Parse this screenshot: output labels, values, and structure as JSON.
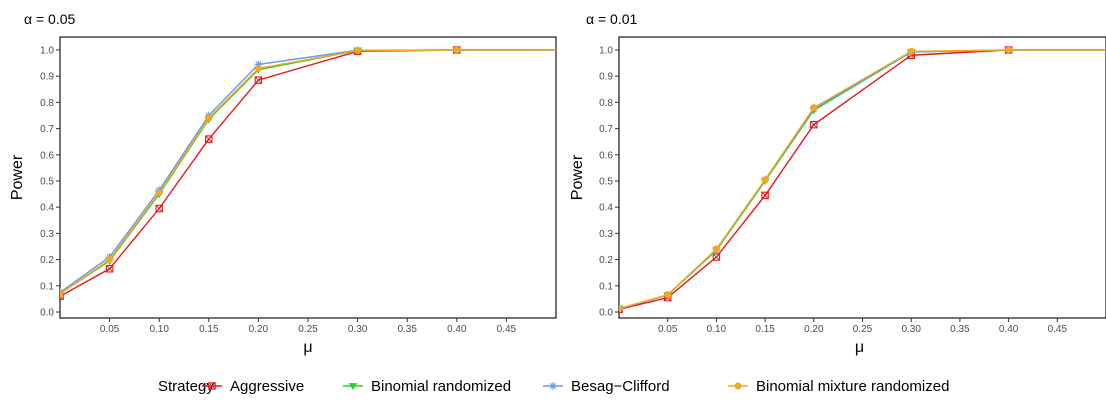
{
  "chart_data": [
    {
      "type": "line",
      "title": "α = 0.05",
      "xlabel": "μ",
      "ylabel": "Power",
      "xlim": [
        0.0,
        0.5
      ],
      "ylim": [
        0.0,
        1.0
      ],
      "xticks": [
        "0.05",
        "0.10",
        "0.15",
        "0.20",
        "0.25",
        "0.30",
        "0.35",
        "0.40",
        "0.45"
      ],
      "yticks": [
        "0.0",
        "0.1",
        "0.2",
        "0.3",
        "0.4",
        "0.5",
        "0.6",
        "0.7",
        "0.8",
        "0.9",
        "1.0"
      ],
      "x": [
        0.0,
        0.05,
        0.1,
        0.15,
        0.2,
        0.3,
        0.4,
        0.5
      ],
      "series": [
        {
          "name": "Aggressive",
          "values": [
            0.06,
            0.165,
            0.395,
            0.66,
            0.885,
            0.995,
            1.0,
            1.0
          ]
        },
        {
          "name": "Binomial randomized",
          "values": [
            0.07,
            0.195,
            0.45,
            0.735,
            0.925,
            0.998,
            1.0,
            1.0
          ]
        },
        {
          "name": "Besag−Clifford",
          "values": [
            0.075,
            0.21,
            0.465,
            0.75,
            0.945,
            0.999,
            1.0,
            1.0
          ]
        },
        {
          "name": "Binomial mixture randomized",
          "values": [
            0.07,
            0.2,
            0.455,
            0.74,
            0.93,
            0.998,
            1.0,
            1.0
          ]
        }
      ]
    },
    {
      "type": "line",
      "title": "α = 0.01",
      "xlabel": "μ",
      "ylabel": "Power",
      "xlim": [
        0.0,
        0.5
      ],
      "ylim": [
        0.0,
        1.0
      ],
      "xticks": [
        "0.05",
        "0.10",
        "0.15",
        "0.20",
        "0.25",
        "0.30",
        "0.35",
        "0.40",
        "0.45"
      ],
      "yticks": [
        "0.0",
        "0.1",
        "0.2",
        "0.3",
        "0.4",
        "0.5",
        "0.6",
        "0.7",
        "0.8",
        "0.9",
        "1.0"
      ],
      "x": [
        0.0,
        0.05,
        0.1,
        0.15,
        0.2,
        0.3,
        0.4,
        0.5
      ],
      "series": [
        {
          "name": "Aggressive",
          "values": [
            0.01,
            0.055,
            0.21,
            0.445,
            0.715,
            0.98,
            1.0,
            1.0
          ]
        },
        {
          "name": "Binomial randomized",
          "values": [
            0.012,
            0.065,
            0.235,
            0.5,
            0.77,
            0.992,
            1.0,
            1.0
          ]
        },
        {
          "name": "Besag−Clifford",
          "values": [
            0.012,
            0.065,
            0.24,
            0.505,
            0.775,
            0.993,
            1.0,
            1.0
          ]
        },
        {
          "name": "Binomial mixture randomized",
          "values": [
            0.013,
            0.066,
            0.24,
            0.505,
            0.78,
            0.995,
            1.0,
            1.0
          ]
        }
      ]
    }
  ],
  "legend": {
    "title": "Strategy",
    "placement": "bottom",
    "items": [
      {
        "name": "Aggressive",
        "color": "#e31a1c",
        "marker": "square-x"
      },
      {
        "name": "Binomial randomized",
        "color": "#33cc33",
        "marker": "triangle-down"
      },
      {
        "name": "Besag−Clifford",
        "color": "#6699ee",
        "marker": "asterisk"
      },
      {
        "name": "Binomial mixture randomized",
        "color": "#f5a623",
        "marker": "circle"
      }
    ]
  }
}
